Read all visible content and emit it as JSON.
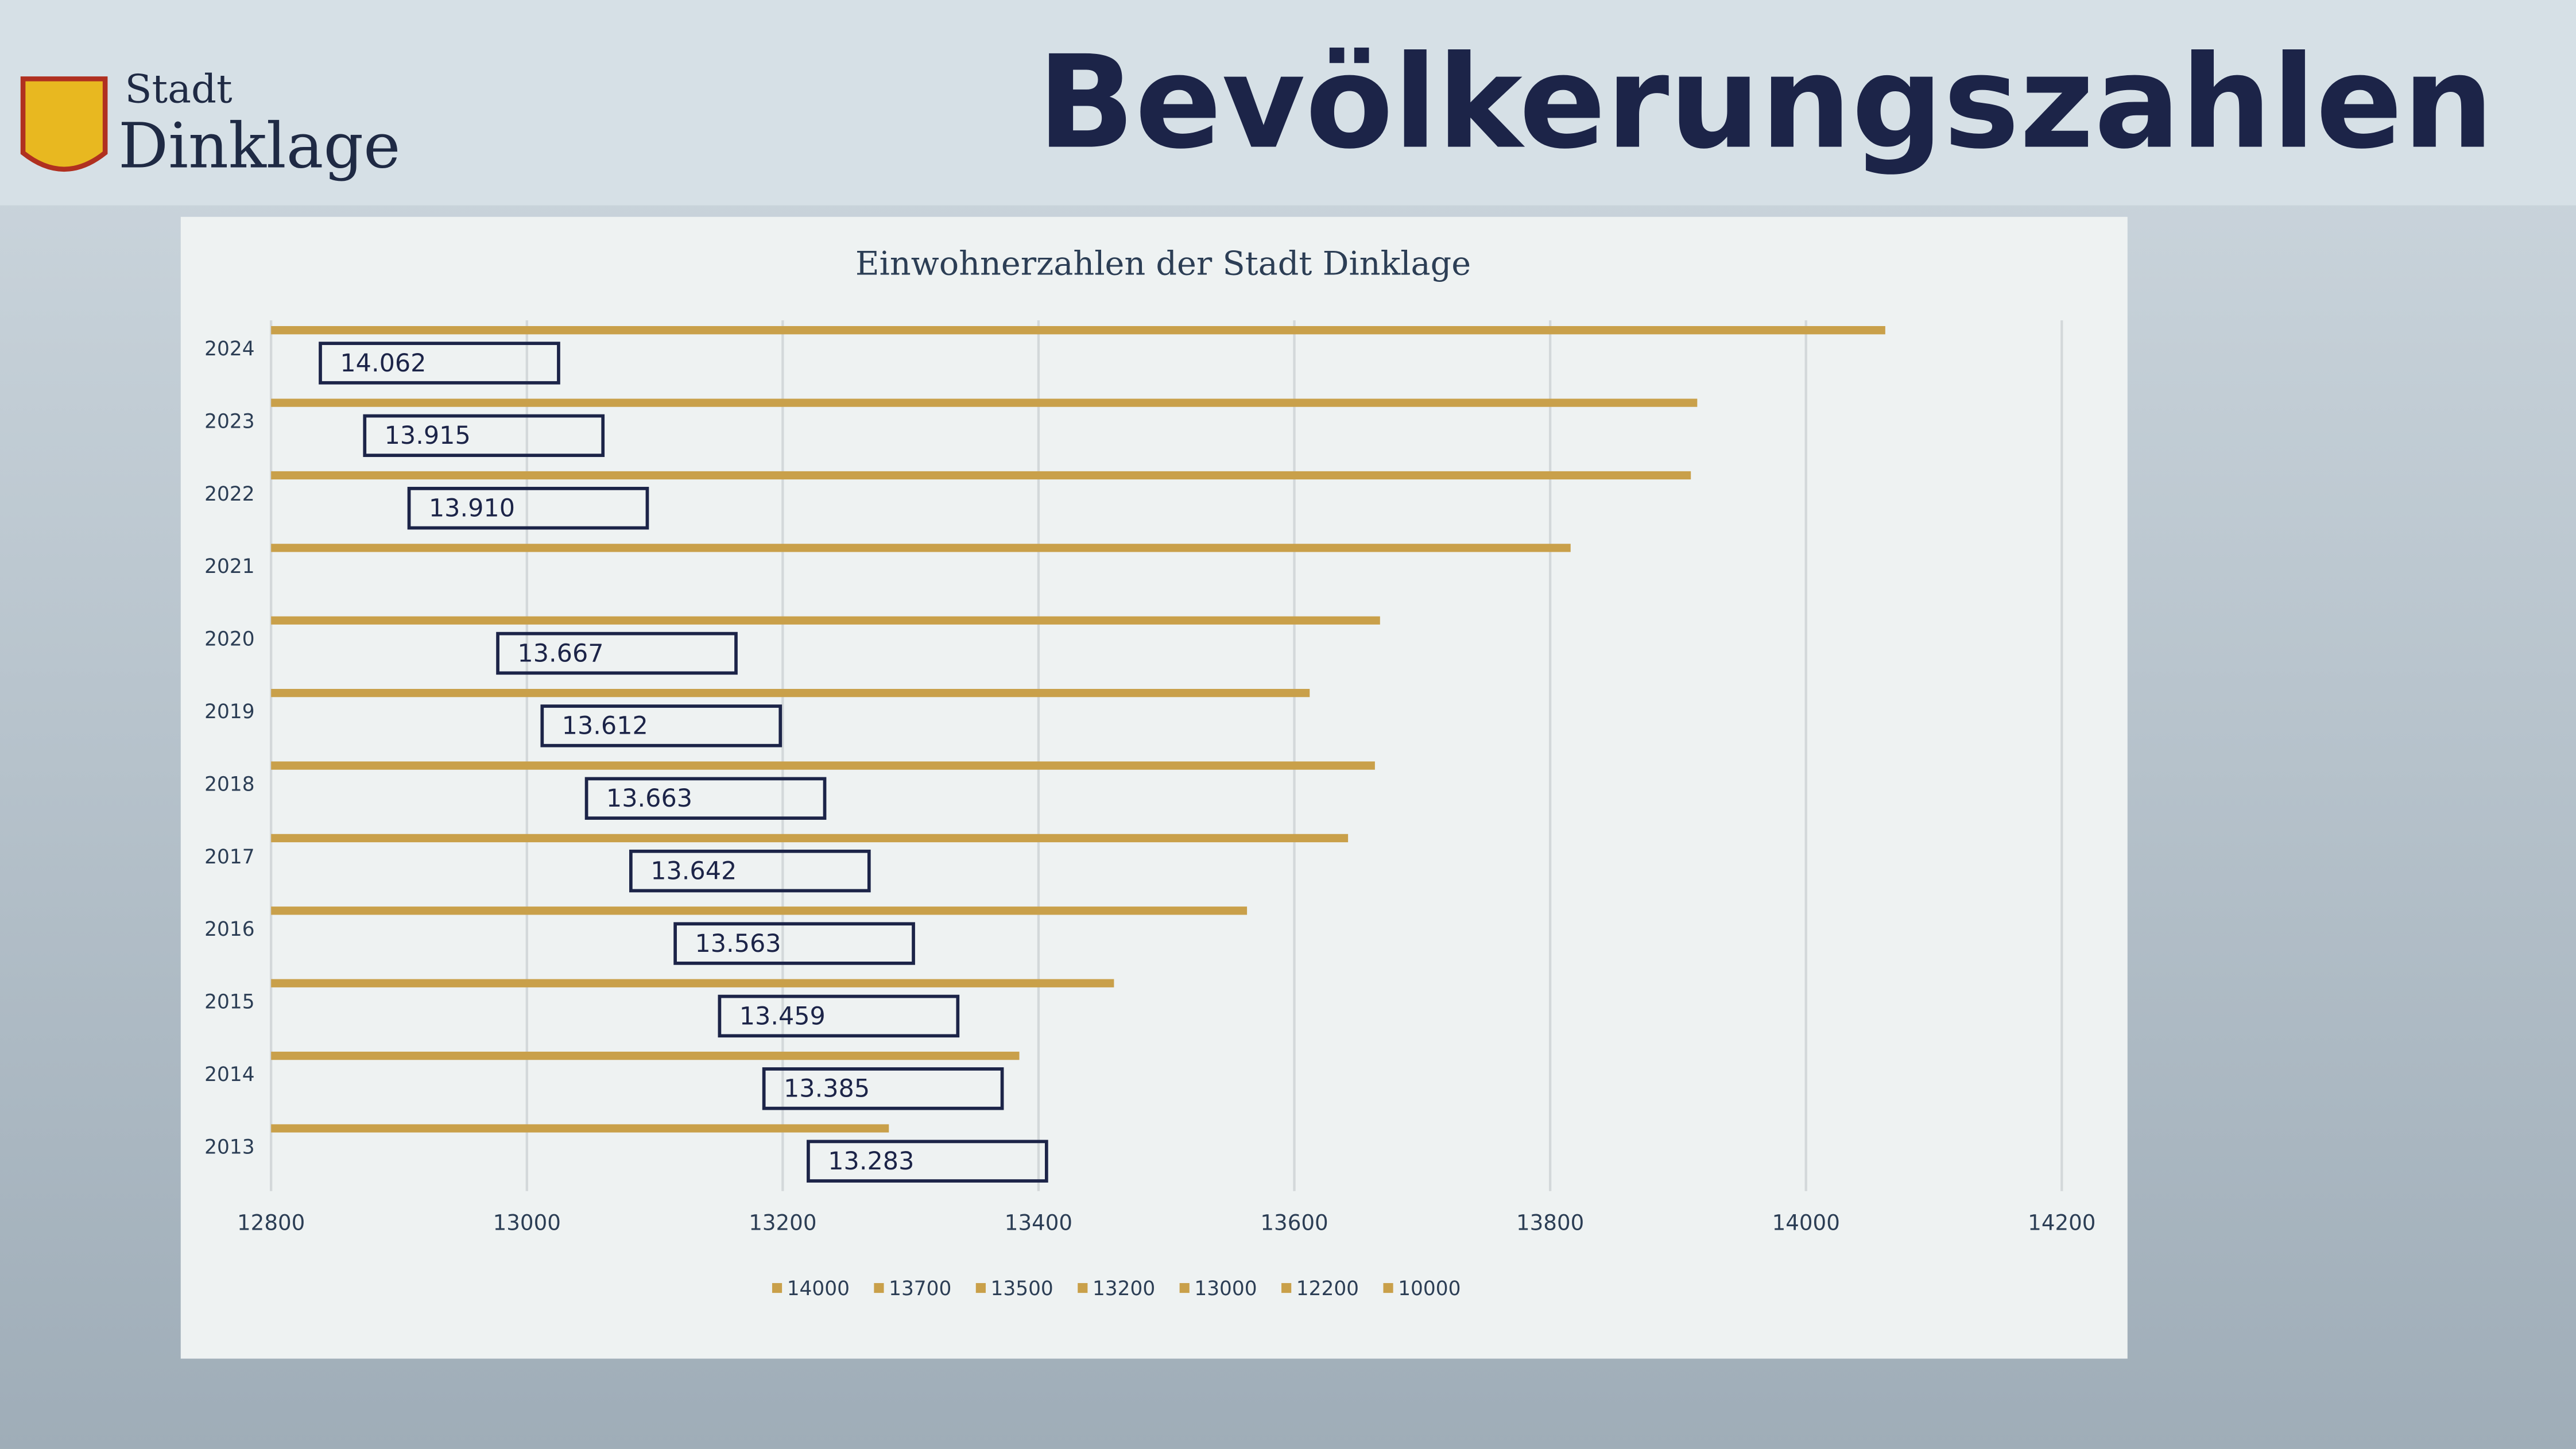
{
  "header": {
    "logo_top": "Stadt",
    "logo_bottom": "Dinklage",
    "title": "Bevölkerungszahlen"
  },
  "chart_data": {
    "type": "hbar",
    "title": "Einwohnerzahlen der Stadt Dinklage",
    "categories": [
      "2024",
      "2023",
      "2022",
      "2021",
      "2020",
      "2019",
      "2018",
      "2017",
      "2016",
      "2015",
      "2014",
      "2013"
    ],
    "values": [
      14062,
      13915,
      13910,
      13816,
      13667,
      13612,
      13663,
      13642,
      13563,
      13459,
      13385,
      13283
    ],
    "value_labels": [
      "14.062",
      "13.915",
      "13.910",
      null,
      "13.667",
      "13.612",
      "13.663",
      "13.642",
      "13.563",
      "13.459",
      "13.385",
      "13.283"
    ],
    "color": "#c9a04a",
    "xlim": [
      12800,
      14200
    ],
    "xticks": [
      12800,
      13000,
      13200,
      13400,
      13600,
      13800,
      14000,
      14200
    ],
    "grid": true,
    "legend": [
      "14000",
      "13700",
      "13500",
      "13200",
      "13000",
      "12200",
      "10000"
    ]
  }
}
